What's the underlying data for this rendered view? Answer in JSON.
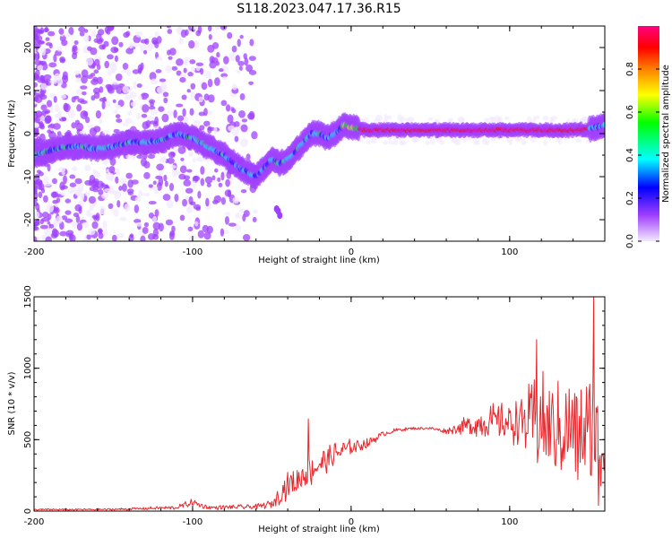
{
  "title": "S118.2023.047.17.36.R15",
  "chart_data": [
    {
      "type": "heatmap",
      "xlabel": "Height of straight line (km)",
      "ylabel": "Frequency (Hz)",
      "xlim": [
        -200,
        160
      ],
      "ylim": [
        -25,
        25
      ],
      "xticks": [
        -200,
        -100,
        0,
        100
      ],
      "xtick_labels": [
        "-200",
        "-100",
        "0",
        "100"
      ],
      "yticks": [
        -20,
        -10,
        0,
        10,
        20
      ],
      "ytick_labels": [
        "-20",
        "-10",
        "0",
        "10",
        "20"
      ],
      "ridge": {
        "x": [
          -200,
          -190,
          -180,
          -170,
          -160,
          -150,
          -140,
          -130,
          -120,
          -110,
          -100,
          -90,
          -80,
          -70,
          -60,
          -55,
          -50,
          -45,
          -40,
          -35,
          -30,
          -25,
          -20,
          -15,
          -10,
          -5,
          0,
          10,
          30,
          60,
          90,
          120,
          140,
          150,
          160
        ],
        "freq": [
          -5,
          -4,
          -3,
          -3,
          -3.5,
          -3,
          -2,
          -2,
          -1.5,
          0,
          -1,
          -3,
          -5,
          -8,
          -10,
          -8,
          -6,
          -7,
          -6,
          -4,
          -2,
          0,
          0,
          -1,
          0,
          2,
          1.5,
          0.8,
          0.8,
          0.8,
          0.8,
          0.8,
          0.8,
          1,
          2
        ]
      },
      "colorbar": {
        "label": "Normalized spectral amplitude",
        "range": [
          0,
          1
        ],
        "ticks": [
          0,
          0.2,
          0.4,
          0.6,
          0.8
        ],
        "tick_labels": [
          "0.0",
          "0.2",
          "0.4",
          "0.6",
          "0.8"
        ],
        "colors": [
          "#f2eaff",
          "#a040ff",
          "#0000ff",
          "#00ffff",
          "#00ff00",
          "#ffff00",
          "#ff8000",
          "#ff0000",
          "#ff0080"
        ]
      }
    },
    {
      "type": "line",
      "xlabel": "Height of straight line (km)",
      "ylabel": "SNR (10 * v/v)",
      "xlim": [
        -200,
        160
      ],
      "ylim": [
        0,
        1500
      ],
      "xticks": [
        -200,
        -100,
        0,
        100
      ],
      "xtick_labels": [
        "-200",
        "-100",
        "0",
        "100"
      ],
      "yticks": [
        0,
        500,
        1000,
        1500
      ],
      "ytick_labels": [
        "0",
        "500",
        "1000",
        "1500"
      ],
      "color": "#e8262b",
      "series": [
        {
          "name": "SNR",
          "x": [
            -200,
            -150,
            -110,
            -100,
            -90,
            -60,
            -50,
            -45,
            -40,
            -35,
            -30,
            -25,
            -20,
            -10,
            0,
            10,
            20,
            30,
            40,
            50,
            60,
            70,
            80,
            90,
            100,
            110,
            115,
            120,
            125,
            130,
            135,
            140,
            145,
            150,
            155,
            160
          ],
          "mean": [
            10,
            12,
            25,
            60,
            25,
            30,
            50,
            120,
            180,
            200,
            250,
            280,
            330,
            400,
            450,
            470,
            540,
            570,
            580,
            580,
            560,
            590,
            610,
            630,
            620,
            620,
            600,
            620,
            580,
            560,
            560,
            560,
            520,
            520,
            480,
            450
          ],
          "amp": [
            8,
            8,
            15,
            30,
            15,
            20,
            30,
            80,
            100,
            110,
            120,
            110,
            110,
            90,
            60,
            40,
            20,
            15,
            10,
            10,
            20,
            60,
            110,
            130,
            150,
            250,
            350,
            380,
            350,
            380,
            380,
            400,
            430,
            500,
            500,
            480
          ]
        }
      ],
      "annotations": [
        {
          "x": -27,
          "y": 645
        },
        {
          "x": 117,
          "y": 1200
        },
        {
          "x": 153,
          "y": 1500
        },
        {
          "x": 156,
          "y": 40
        }
      ]
    }
  ]
}
